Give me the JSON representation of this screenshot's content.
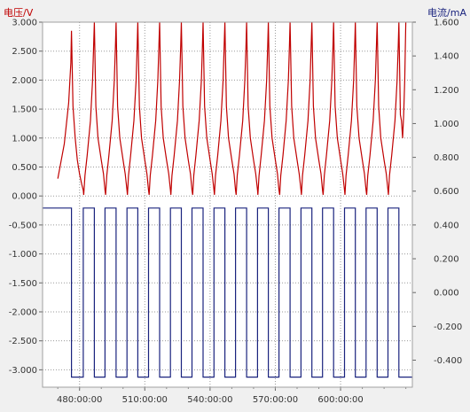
{
  "colors": {
    "voltage": "#c00000",
    "current": "#1a237e",
    "left_title": "#c00000",
    "right_title": "#1a237e",
    "grid": "#9a9a9a",
    "plot_bg": "#ffffff",
    "window_bg": "#f0f0f0",
    "tick_text": "#333333"
  },
  "chart_data": {
    "type": "line",
    "grid": true,
    "legend": "none",
    "left_axis": {
      "title": "电压/V",
      "range": [
        -3.3,
        3.0
      ],
      "ticks": [
        "3.000",
        "2.500",
        "2.000",
        "1.500",
        "1.000",
        "0.500",
        "0.000",
        "-0.500",
        "-1.000",
        "-1.500",
        "-2.000",
        "-2.500",
        "-3.000"
      ]
    },
    "right_axis": {
      "title": "电流/mA",
      "range": [
        -0.56,
        1.6
      ],
      "ticks": [
        "1.600",
        "1.400",
        "1.200",
        "1.000",
        "0.800",
        "0.600",
        "0.400",
        "0.200",
        "0.000",
        "-0.200",
        "-0.400"
      ]
    },
    "x_axis": {
      "unit": "minutes",
      "range": [
        463,
        633
      ],
      "ticks": [
        "480:00:00",
        "510:00:00",
        "540:00:00",
        "570:00:00",
        "600:00:00"
      ],
      "tick_values": [
        480,
        510,
        540,
        570,
        600
      ]
    },
    "series": [
      {
        "axis": "left",
        "color": "#c00000",
        "x": [
          470,
          473,
          475,
          476,
          476.3,
          477,
          478,
          479,
          480,
          481,
          481.7,
          481.9,
          482.5,
          483.5,
          485,
          486,
          486.5,
          486.8,
          487.5,
          488.5,
          490,
          491,
          491.7,
          492,
          492.5,
          493.5,
          495,
          496,
          496.5,
          496.8,
          497.5,
          498.5,
          500,
          501,
          501.8,
          502,
          502.5,
          503.5,
          505,
          506,
          506.5,
          506.8,
          507.5,
          508.5,
          510,
          511,
          511.7,
          512,
          512.5,
          513.5,
          515,
          516,
          516.5,
          516.8,
          517.5,
          518.5,
          520,
          521,
          521.8,
          522,
          522.5,
          523.5,
          525,
          526,
          526.5,
          526.8,
          527.5,
          528.5,
          530,
          531,
          531.7,
          532,
          532.5,
          533.5,
          535,
          536,
          536.5,
          536.8,
          537.5,
          538.5,
          540,
          541,
          541.8,
          542,
          542.5,
          543.5,
          545,
          546,
          546.5,
          546.8,
          547.5,
          548.5,
          550,
          551,
          551.7,
          552,
          552.5,
          553.5,
          555,
          556,
          556.5,
          556.8,
          557.5,
          558.5,
          560,
          561,
          561.8,
          562,
          562.5,
          563.5,
          565,
          566,
          566.5,
          566.8,
          567.5,
          568.5,
          570,
          571,
          571.7,
          572,
          572.5,
          573.5,
          575,
          576,
          576.5,
          576.8,
          577.5,
          578.5,
          580,
          581,
          581.8,
          582,
          582.5,
          583.5,
          585,
          586,
          586.5,
          586.8,
          587.5,
          588.5,
          590,
          591,
          591.7,
          592,
          592.5,
          593.5,
          595,
          596,
          596.5,
          596.8,
          597.5,
          598.5,
          600,
          601,
          601.8,
          602,
          602.5,
          603.5,
          605,
          606,
          606.5,
          606.8,
          607.5,
          608.5,
          610,
          611,
          611.7,
          612,
          612.5,
          613.5,
          615,
          616,
          616.5,
          616.8,
          617.5,
          618.5,
          620,
          621,
          621.8,
          622,
          622.5,
          623.5,
          625,
          626,
          626.5,
          626.8,
          627.5,
          628,
          628.5,
          629,
          629.5,
          630
        ],
        "y": [
          0.3,
          0.9,
          1.6,
          2.3,
          2.85,
          1.55,
          1.0,
          0.62,
          0.38,
          0.2,
          0.1,
          0.02,
          0.35,
          0.7,
          1.3,
          2.0,
          2.6,
          3.0,
          1.55,
          1.0,
          0.62,
          0.38,
          0.1,
          0.02,
          0.35,
          0.7,
          1.3,
          2.0,
          2.6,
          3.0,
          1.55,
          1.0,
          0.62,
          0.38,
          0.1,
          0.02,
          0.35,
          0.7,
          1.3,
          2.0,
          2.6,
          3.0,
          1.55,
          1.0,
          0.62,
          0.38,
          0.1,
          0.02,
          0.35,
          0.7,
          1.3,
          2.0,
          2.6,
          3.0,
          1.55,
          1.0,
          0.62,
          0.38,
          0.1,
          0.02,
          0.35,
          0.7,
          1.3,
          2.0,
          2.6,
          3.0,
          1.55,
          1.0,
          0.62,
          0.38,
          0.1,
          0.02,
          0.35,
          0.7,
          1.3,
          2.0,
          2.6,
          3.0,
          1.55,
          1.0,
          0.62,
          0.38,
          0.1,
          0.02,
          0.35,
          0.7,
          1.3,
          2.0,
          2.6,
          3.0,
          1.55,
          1.0,
          0.62,
          0.38,
          0.1,
          0.02,
          0.35,
          0.7,
          1.3,
          2.0,
          2.6,
          3.0,
          1.55,
          1.0,
          0.62,
          0.38,
          0.1,
          0.02,
          0.35,
          0.7,
          1.3,
          2.0,
          2.6,
          3.0,
          1.55,
          1.0,
          0.62,
          0.38,
          0.1,
          0.02,
          0.35,
          0.7,
          1.3,
          2.0,
          2.6,
          3.0,
          1.55,
          1.0,
          0.62,
          0.38,
          0.1,
          0.02,
          0.35,
          0.7,
          1.3,
          2.0,
          2.6,
          3.0,
          1.55,
          1.0,
          0.62,
          0.38,
          0.1,
          0.02,
          0.35,
          0.7,
          1.3,
          2.0,
          2.6,
          3.0,
          1.55,
          1.0,
          0.62,
          0.38,
          0.1,
          0.02,
          0.35,
          0.7,
          1.3,
          2.0,
          2.6,
          3.0,
          1.55,
          1.0,
          0.62,
          0.38,
          0.1,
          0.02,
          0.35,
          0.7,
          1.3,
          2.0,
          2.6,
          3.0,
          1.55,
          1.0,
          0.62,
          0.38,
          0.1,
          0.02,
          0.35,
          0.7,
          1.3,
          2.0,
          2.6,
          3.0,
          1.4,
          1.3,
          1.0,
          1.4,
          2.0,
          3.0
        ]
      },
      {
        "axis": "right",
        "color": "#1a237e",
        "x": [
          463,
          476.3,
          476.3,
          481.7,
          481.7,
          486.8,
          486.8,
          491.7,
          491.7,
          496.8,
          496.8,
          501.8,
          501.8,
          506.8,
          506.8,
          511.7,
          511.7,
          516.8,
          516.8,
          521.8,
          521.8,
          526.8,
          526.8,
          531.7,
          531.7,
          536.8,
          536.8,
          541.8,
          541.8,
          546.8,
          546.8,
          551.7,
          551.7,
          556.8,
          556.8,
          561.8,
          561.8,
          566.8,
          566.8,
          571.7,
          571.7,
          576.8,
          576.8,
          581.8,
          581.8,
          586.8,
          586.8,
          591.7,
          591.7,
          596.8,
          596.8,
          601.8,
          601.8,
          606.8,
          606.8,
          611.7,
          611.7,
          616.8,
          616.8,
          621.8,
          621.8,
          626.8,
          626.8,
          633
        ],
        "y": [
          0.5,
          0.5,
          -0.5,
          -0.5,
          0.5,
          0.5,
          -0.5,
          -0.5,
          0.5,
          0.5,
          -0.5,
          -0.5,
          0.5,
          0.5,
          -0.5,
          -0.5,
          0.5,
          0.5,
          -0.5,
          -0.5,
          0.5,
          0.5,
          -0.5,
          -0.5,
          0.5,
          0.5,
          -0.5,
          -0.5,
          0.5,
          0.5,
          -0.5,
          -0.5,
          0.5,
          0.5,
          -0.5,
          -0.5,
          0.5,
          0.5,
          -0.5,
          -0.5,
          0.5,
          0.5,
          -0.5,
          -0.5,
          0.5,
          0.5,
          -0.5,
          -0.5,
          0.5,
          0.5,
          -0.5,
          -0.5,
          0.5,
          0.5,
          -0.5,
          -0.5,
          0.5,
          0.5,
          -0.5,
          -0.5,
          0.5,
          0.5,
          -0.5,
          -0.5
        ]
      }
    ]
  }
}
